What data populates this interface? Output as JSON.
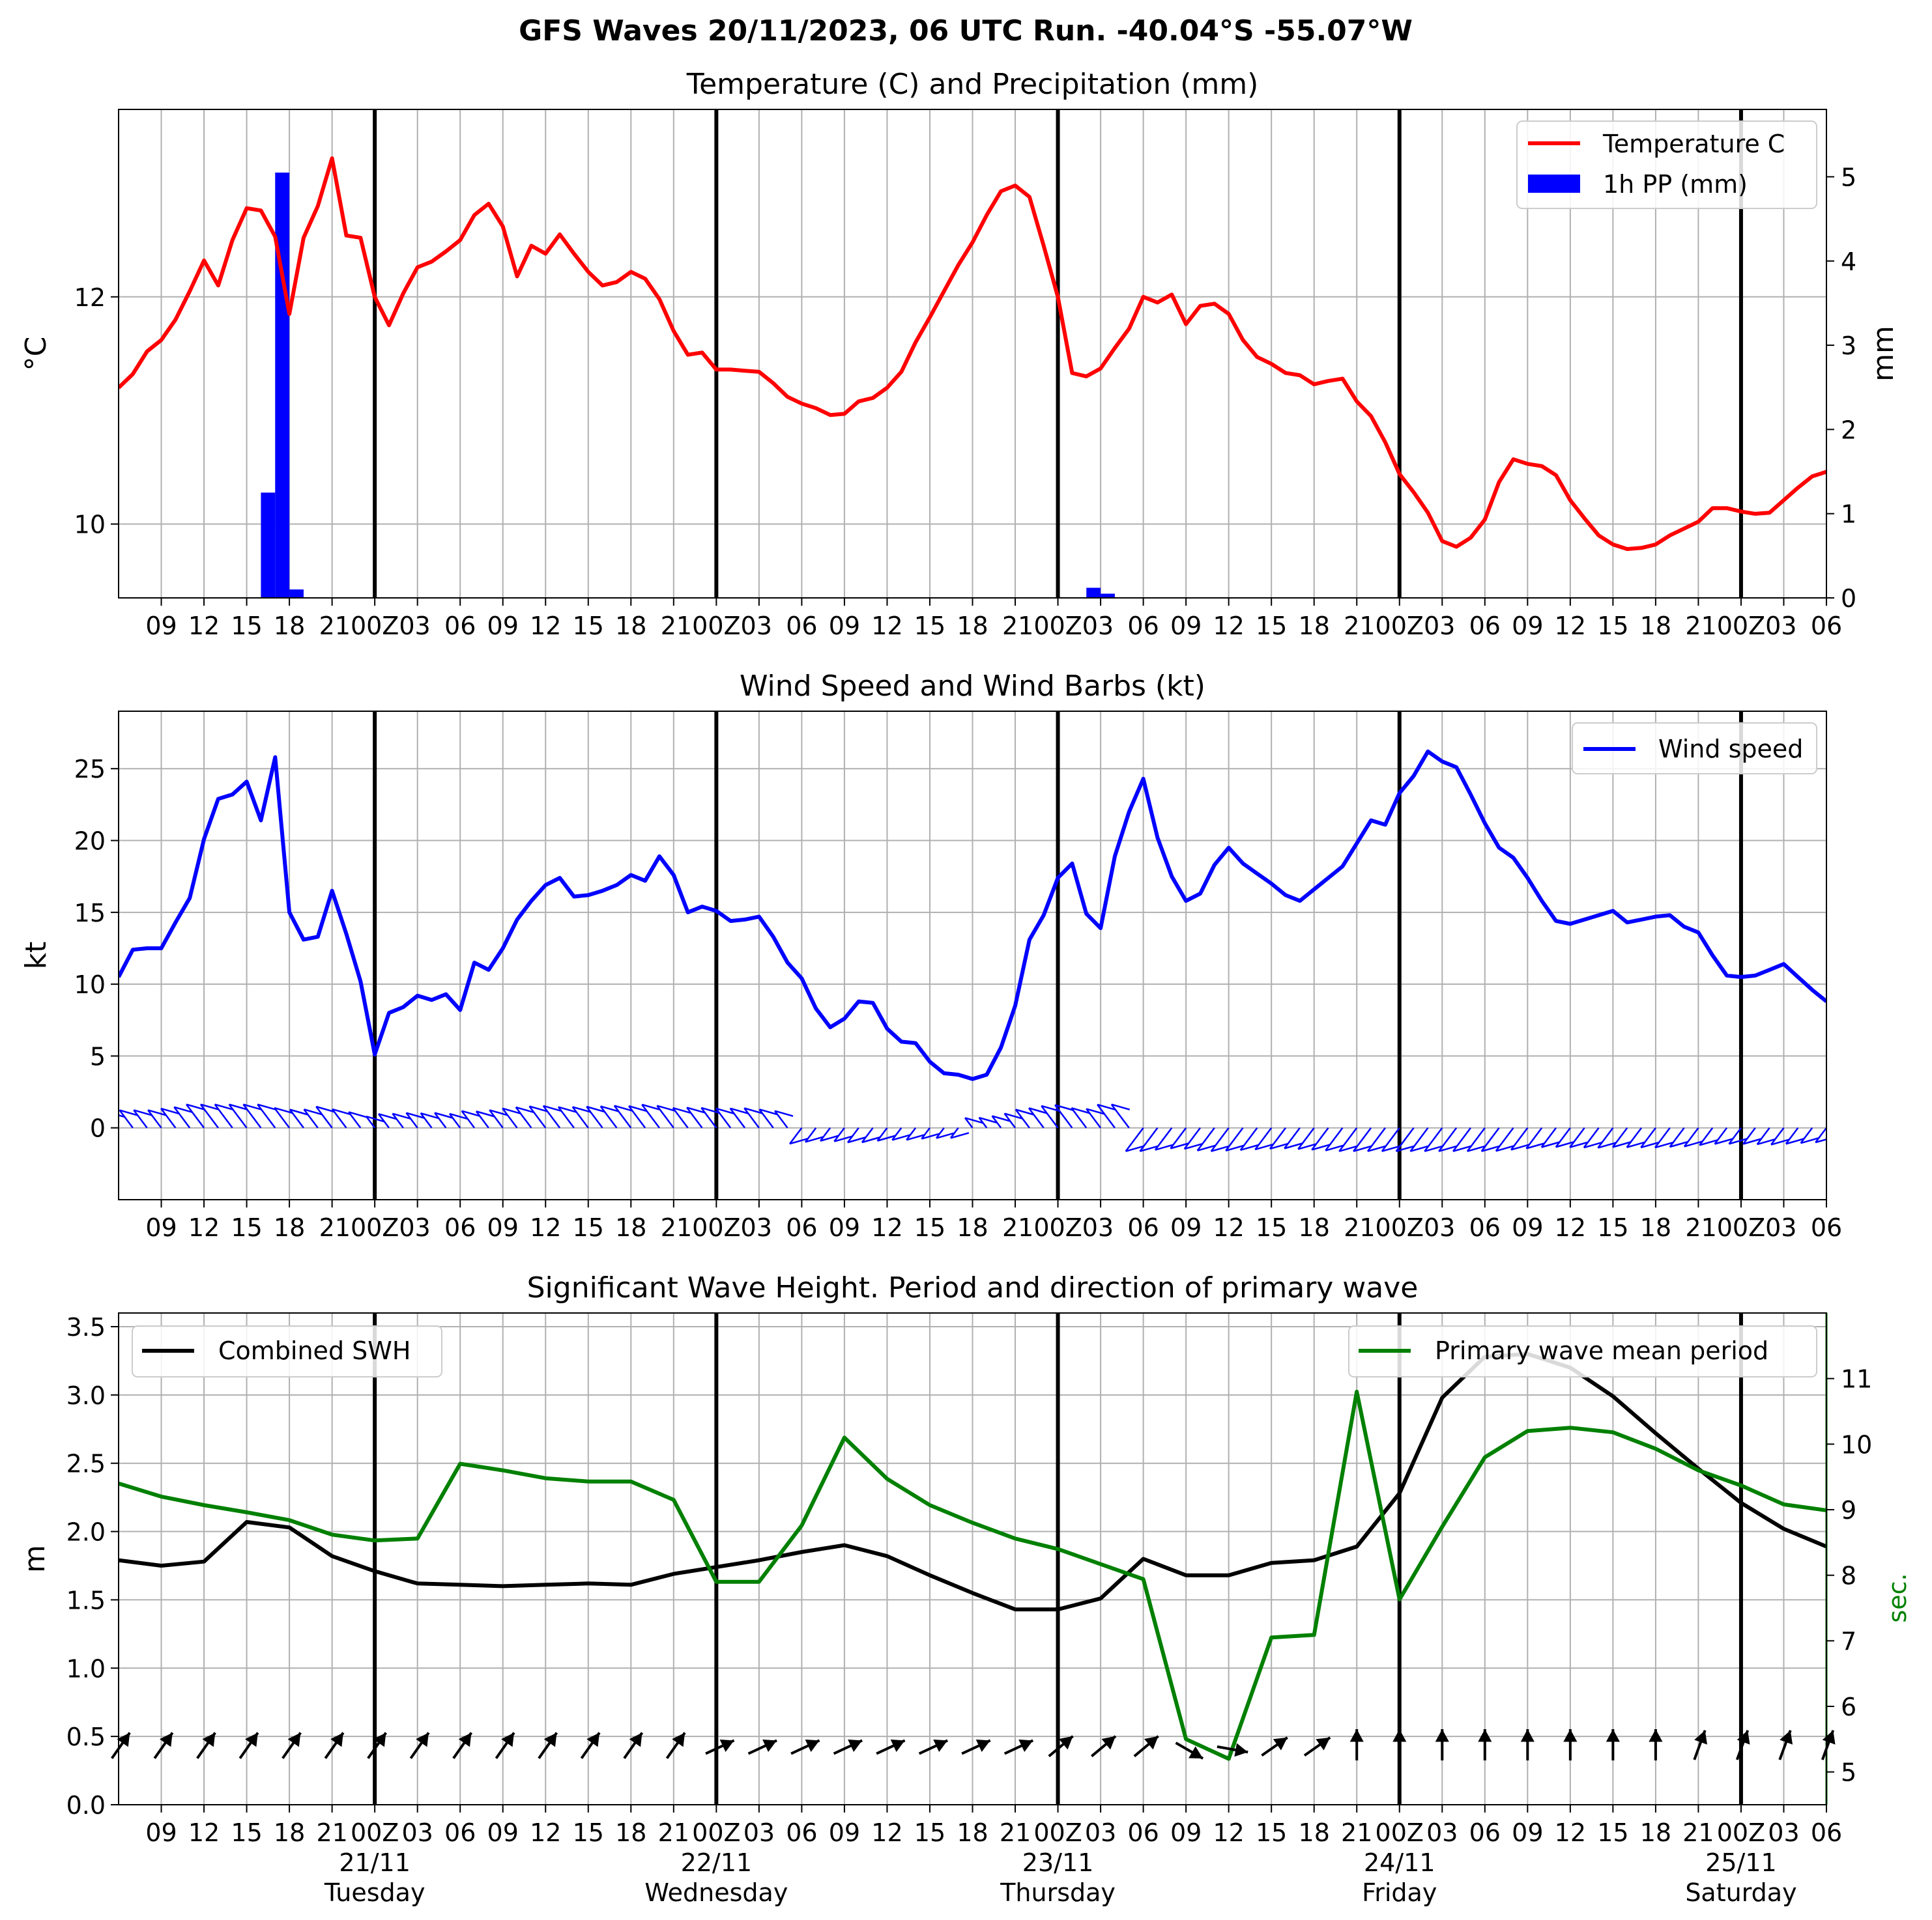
{
  "figure_title": "GFS Waves 20/11/2023, 06 UTC Run. -40.04°S -55.07°W",
  "colors": {
    "temperature": "#ff0000",
    "precip": "#0000ff",
    "wind": "#0000ff",
    "swh": "#000000",
    "period": "#008000",
    "grid": "#b0b0b0"
  },
  "x_ticks": [
    "09",
    "12",
    "15",
    "18",
    "21",
    "00Z",
    "03",
    "06",
    "09",
    "12",
    "15",
    "18",
    "21",
    "00Z",
    "03",
    "06",
    "09",
    "12",
    "15",
    "18",
    "21",
    "00Z",
    "03",
    "06",
    "09",
    "12",
    "15",
    "18",
    "21",
    "00Z",
    "03",
    "06",
    "09",
    "12",
    "15",
    "18",
    "21",
    "00Z",
    "03",
    "06"
  ],
  "top_tick_labels": [
    "09",
    "12",
    "15",
    "18",
    "2100Z03",
    "06",
    "09",
    "12",
    "15",
    "18",
    "2100Z03",
    "06",
    "09",
    "12",
    "15",
    "18",
    "2100Z03",
    "06",
    "09",
    "12",
    "15",
    "18",
    "2100Z03",
    "06",
    "09",
    "12",
    "15",
    "18",
    "2100Z03",
    "06"
  ],
  "bottom_tick_labels": [
    "09",
    "12",
    "15",
    "18",
    "21",
    "00Z",
    "03",
    "06",
    "09",
    "12",
    "15",
    "18",
    "21",
    "00Z",
    "03",
    "06",
    "09",
    "12",
    "15",
    "18",
    "21",
    "00Z",
    "03",
    "06",
    "09",
    "12",
    "15",
    "18",
    "21",
    "00Z",
    "03",
    "06",
    "09",
    "12",
    "15",
    "18",
    "21",
    "00Z",
    "03",
    "06"
  ],
  "day_labels": [
    {
      "date": "21/11",
      "day": "Tuesday"
    },
    {
      "date": "22/11",
      "day": "Wednesday"
    },
    {
      "date": "23/11",
      "day": "Thursday"
    },
    {
      "date": "24/11",
      "day": "Friday"
    },
    {
      "date": "25/11",
      "day": "Saturday"
    }
  ],
  "chart_data": [
    {
      "type": "line",
      "title": "Temperature (C) and Precipitation (mm)",
      "x_unit": "hours since 20/11/2023 06 UTC",
      "xlim": [
        0,
        120
      ],
      "ylabel": "°C",
      "y2label": "mm",
      "ylim": [
        9.35,
        13.65
      ],
      "y_ticks": [
        10,
        12
      ],
      "y2lim": [
        0,
        5.8
      ],
      "y2_ticks": [
        0,
        1,
        2,
        3,
        4,
        5
      ],
      "legend": [
        "Temperature C",
        "1h PP (mm)"
      ],
      "legend_position": "top-right",
      "temperature": {
        "name": "Temperature C",
        "x": [
          0,
          1,
          2,
          3,
          4,
          5,
          6,
          7,
          8,
          9,
          10,
          11,
          12,
          13,
          14,
          15,
          16,
          17,
          18,
          19,
          20,
          21,
          22,
          23,
          24,
          25,
          26,
          27,
          28,
          29,
          30,
          31,
          32,
          33,
          34,
          35,
          36,
          37,
          38,
          39,
          40,
          41,
          42,
          43,
          44,
          45,
          46,
          47,
          48,
          49,
          50,
          51,
          52,
          53,
          54,
          55,
          56,
          57,
          58,
          59,
          60,
          61,
          62,
          63,
          64,
          65,
          66,
          67,
          68,
          69,
          70,
          71,
          72,
          73,
          74,
          75,
          76,
          77,
          78,
          79,
          80,
          81,
          82,
          83,
          84,
          85,
          86,
          87,
          88,
          89,
          90,
          91,
          92,
          93,
          94,
          95,
          96,
          97,
          98,
          99,
          100,
          101,
          102,
          103,
          104,
          105,
          106,
          107,
          108,
          109,
          110,
          111,
          112,
          113,
          114,
          115,
          116,
          117,
          118,
          119,
          120
        ],
        "y": [
          11.2,
          11.32,
          11.52,
          11.62,
          11.8,
          12.05,
          12.32,
          12.1,
          12.5,
          12.78,
          12.76,
          12.53,
          11.85,
          12.52,
          12.8,
          13.22,
          12.54,
          12.52,
          12.0,
          11.75,
          12.03,
          12.26,
          12.31,
          12.4,
          12.5,
          12.72,
          12.82,
          12.62,
          12.18,
          12.45,
          12.38,
          12.55,
          12.38,
          12.22,
          12.1,
          12.13,
          12.22,
          12.16,
          11.98,
          11.7,
          11.49,
          11.51,
          11.36,
          11.36,
          11.35,
          11.34,
          11.24,
          11.12,
          11.06,
          11.02,
          10.96,
          10.97,
          11.08,
          11.11,
          11.2,
          11.34,
          11.6,
          11.82,
          12.05,
          12.28,
          12.48,
          12.72,
          12.93,
          12.98,
          12.88,
          12.45,
          12.0,
          11.33,
          11.3,
          11.37,
          11.55,
          11.72,
          12.0,
          11.95,
          12.02,
          11.76,
          11.92,
          11.94,
          11.85,
          11.62,
          11.47,
          11.41,
          11.33,
          11.31,
          11.23,
          11.26,
          11.28,
          11.08,
          10.95,
          10.72,
          10.44,
          10.28,
          10.1,
          9.85,
          9.8,
          9.88,
          10.04,
          10.37,
          10.57,
          10.53,
          10.51,
          10.43,
          10.21,
          10.05,
          9.9,
          9.82,
          9.78,
          9.79,
          9.82,
          9.9,
          9.96,
          10.02,
          10.14,
          10.14,
          10.11,
          10.09,
          10.1,
          10.21,
          10.32,
          10.42,
          10.46
        ]
      },
      "precip": {
        "name": "1h PP (mm)",
        "type": "bar",
        "bars": [
          {
            "x": 10.5,
            "value": 1.25
          },
          {
            "x": 11.5,
            "value": 5.05
          },
          {
            "x": 12.5,
            "value": 0.1
          },
          {
            "x": 68.5,
            "value": 0.12
          },
          {
            "x": 69.5,
            "value": 0.05
          }
        ]
      }
    },
    {
      "type": "line",
      "title": "Wind Speed and Wind Barbs (kt)",
      "x_unit": "hours since 20/11/2023 06 UTC",
      "xlim": [
        0,
        120
      ],
      "ylabel": "kt",
      "ylim": [
        -5,
        29
      ],
      "y_ticks": [
        0,
        5,
        10,
        15,
        20,
        25
      ],
      "legend": [
        "Wind speed"
      ],
      "legend_position": "top-right",
      "wind_speed": {
        "name": "Wind speed",
        "x": [
          0,
          1,
          2,
          3,
          4,
          5,
          6,
          7,
          8,
          9,
          10,
          11,
          12,
          13,
          14,
          15,
          16,
          17,
          18,
          19,
          20,
          21,
          22,
          23,
          24,
          25,
          26,
          27,
          28,
          29,
          30,
          31,
          32,
          33,
          34,
          35,
          36,
          37,
          38,
          39,
          40,
          41,
          42,
          43,
          44,
          45,
          46,
          47,
          48,
          49,
          50,
          51,
          52,
          53,
          54,
          55,
          56,
          57,
          58,
          59,
          60,
          61,
          62,
          63,
          64,
          65,
          66,
          67,
          68,
          69,
          70,
          71,
          72,
          73,
          74,
          75,
          76,
          77,
          78,
          79,
          80,
          81,
          82,
          83,
          84,
          85,
          86,
          87,
          88,
          89,
          90,
          91,
          92,
          93,
          94,
          95,
          96,
          97,
          98,
          99,
          100,
          101,
          102,
          103,
          104,
          105,
          106,
          107,
          108,
          109,
          110,
          111,
          112,
          113,
          114,
          115,
          116,
          117,
          118,
          119,
          120
        ],
        "y": [
          10.5,
          12.4,
          12.5,
          12.5,
          14.3,
          16.0,
          20.1,
          22.9,
          23.2,
          24.1,
          21.4,
          25.8,
          15.0,
          13.1,
          13.3,
          16.5,
          13.5,
          10.2,
          5.1,
          8.0,
          8.4,
          9.2,
          8.9,
          9.3,
          8.2,
          11.5,
          11.0,
          12.5,
          14.5,
          15.8,
          16.9,
          17.4,
          16.1,
          16.2,
          16.5,
          16.9,
          17.6,
          17.2,
          18.9,
          17.6,
          15.0,
          15.4,
          15.1,
          14.4,
          14.5,
          14.7,
          13.3,
          11.5,
          10.4,
          8.3,
          7.0,
          7.6,
          8.8,
          8.7,
          6.9,
          6.0,
          5.9,
          4.6,
          3.8,
          3.7,
          3.4,
          3.7,
          5.6,
          8.5,
          13.1,
          14.8,
          17.4,
          18.4,
          14.9,
          13.9,
          18.9,
          22.0,
          24.3,
          20.2,
          17.5,
          15.8,
          16.3,
          18.3,
          19.5,
          18.4,
          17.7,
          17.0,
          16.2,
          15.8,
          16.6,
          17.4,
          18.2,
          19.8,
          21.4,
          21.1,
          23.3,
          24.5,
          26.2,
          25.5,
          25.1,
          23.2,
          21.2,
          19.5,
          18.8,
          17.4,
          15.8,
          14.4,
          14.2,
          14.5,
          14.8,
          15.1,
          14.3,
          14.5,
          14.7,
          14.8,
          14.0,
          13.6,
          12.0,
          10.6,
          10.5,
          10.6,
          11.0,
          11.4,
          10.5,
          9.6,
          8.8
        ]
      },
      "barbs": "wind barbs drawn along y = 0"
    },
    {
      "type": "line",
      "title": "Significant Wave Height. Period and direction of primary wave",
      "x_unit": "hours since 20/11/2023 06 UTC",
      "xlim": [
        0,
        120
      ],
      "ylabel": "m",
      "y2label": "sec.",
      "ylim": [
        0,
        3.6
      ],
      "y_ticks": [
        0.0,
        0.5,
        1.0,
        1.5,
        2.0,
        2.5,
        3.0,
        3.5
      ],
      "y2lim": [
        4.5,
        12
      ],
      "y2_ticks": [
        5,
        6,
        7,
        8,
        9,
        10,
        11
      ],
      "legend": [
        "Combined SWH",
        "Primary wave mean period"
      ],
      "legend_position": "top-left and top-right",
      "swh": {
        "name": "Combined SWH",
        "x": [
          0,
          3,
          6,
          9,
          12,
          15,
          18,
          21,
          24,
          27,
          30,
          33,
          36,
          39,
          42,
          45,
          48,
          51,
          54,
          57,
          60,
          63,
          66,
          69,
          72,
          75,
          78,
          81,
          84,
          87,
          90,
          93,
          96,
          99,
          102,
          105,
          108,
          111,
          114,
          117,
          120
        ],
        "y": [
          1.79,
          1.75,
          1.78,
          2.07,
          2.03,
          1.82,
          1.71,
          1.62,
          1.61,
          1.6,
          1.61,
          1.62,
          1.61,
          1.69,
          1.74,
          1.79,
          1.85,
          1.9,
          1.82,
          1.68,
          1.55,
          1.43,
          1.43,
          1.51,
          1.8,
          1.68,
          1.68,
          1.77,
          1.79,
          1.89,
          2.28,
          2.98,
          3.28,
          3.3,
          3.2,
          2.99,
          2.72,
          2.46,
          2.21,
          2.02,
          1.89
        ]
      },
      "period": {
        "name": "Primary wave mean period",
        "x": [
          0,
          3,
          6,
          9,
          12,
          15,
          18,
          21,
          24,
          27,
          30,
          33,
          36,
          39,
          42,
          45,
          48,
          51,
          54,
          57,
          60,
          63,
          66,
          69,
          72,
          75,
          78,
          81,
          84,
          87,
          90,
          93,
          96,
          99,
          102,
          105,
          108,
          111,
          114,
          117,
          120
        ],
        "y": [
          9.4,
          9.2,
          9.07,
          8.96,
          8.84,
          8.62,
          8.53,
          8.56,
          9.7,
          9.6,
          9.48,
          9.43,
          9.43,
          9.15,
          7.9,
          7.9,
          8.76,
          10.1,
          9.47,
          9.07,
          8.8,
          8.56,
          8.4,
          8.17,
          7.94,
          5.5,
          5.2,
          7.05,
          7.09,
          10.8,
          7.63,
          8.74,
          9.8,
          10.2,
          10.25,
          10.18,
          9.93,
          9.6,
          9.37,
          9.08,
          8.99
        ]
      },
      "direction_arrows": "primary wave direction arrows drawn along y = 0.41"
    }
  ]
}
